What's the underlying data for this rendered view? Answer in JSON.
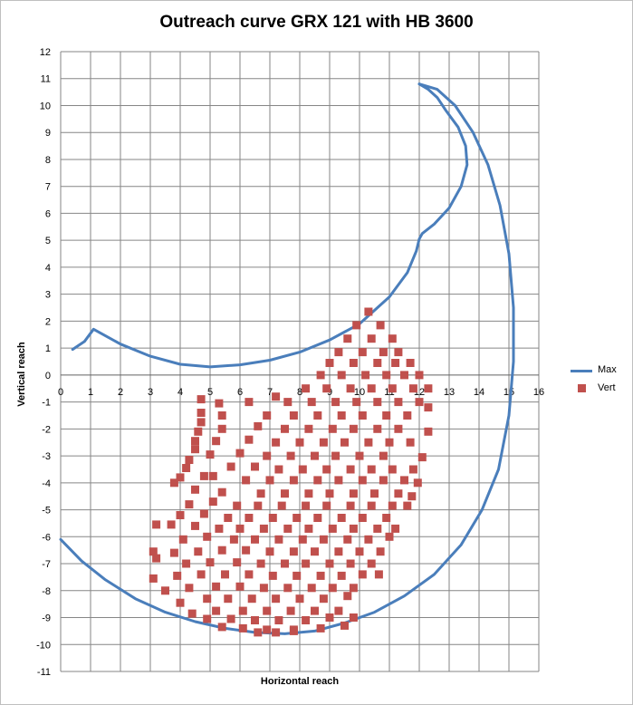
{
  "chart_data": {
    "type": "scatter",
    "title": "Outreach curve GRX 121 with HB 3600",
    "xlabel": "Horizontal reach",
    "ylabel": "Vertical reach",
    "xlim": [
      0,
      16
    ],
    "ylim": [
      -11,
      12
    ],
    "x_ticks": [
      0,
      1,
      2,
      3,
      4,
      5,
      6,
      7,
      8,
      9,
      10,
      11,
      12,
      13,
      14,
      15,
      16
    ],
    "y_ticks": [
      12,
      11,
      10,
      9,
      8,
      7,
      6,
      5,
      4,
      3,
      2,
      1,
      0,
      -1,
      -2,
      -3,
      -4,
      -5,
      -6,
      -7,
      -8,
      -9,
      -10,
      -11
    ],
    "grid": true,
    "legend_position": "right",
    "series": [
      {
        "name": "Max",
        "style": "line",
        "color": "#4a7ebb",
        "segments": [
          [
            [
              0.4,
              0.95
            ],
            [
              0.8,
              1.25
            ],
            [
              1.1,
              1.7
            ],
            [
              2.0,
              1.15
            ],
            [
              3.0,
              0.7
            ],
            [
              4.0,
              0.4
            ],
            [
              5.0,
              0.3
            ],
            [
              6.0,
              0.38
            ],
            [
              7.0,
              0.55
            ],
            [
              8.0,
              0.85
            ],
            [
              9.0,
              1.3
            ],
            [
              10.0,
              1.9
            ],
            [
              11.0,
              2.9
            ],
            [
              11.6,
              3.8
            ],
            [
              11.9,
              4.6
            ],
            [
              12.0,
              5.05
            ],
            [
              12.1,
              5.25
            ],
            [
              12.5,
              5.6
            ],
            [
              13.0,
              6.2
            ],
            [
              13.4,
              7.0
            ],
            [
              13.6,
              7.8
            ],
            [
              13.55,
              8.5
            ],
            [
              13.3,
              9.2
            ],
            [
              12.9,
              9.8
            ],
            [
              12.6,
              10.3
            ],
            [
              12.3,
              10.6
            ],
            [
              12.0,
              10.8
            ]
          ],
          [
            [
              12.0,
              10.8
            ],
            [
              12.6,
              10.6
            ],
            [
              13.2,
              10.0
            ],
            [
              13.8,
              9.0
            ],
            [
              14.3,
              7.8
            ],
            [
              14.7,
              6.3
            ],
            [
              15.0,
              4.5
            ],
            [
              15.15,
              2.5
            ],
            [
              15.15,
              0.5
            ],
            [
              15.0,
              -1.5
            ],
            [
              14.65,
              -3.5
            ],
            [
              14.1,
              -5.0
            ],
            [
              13.4,
              -6.3
            ],
            [
              12.5,
              -7.4
            ],
            [
              11.5,
              -8.2
            ],
            [
              10.5,
              -8.8
            ],
            [
              9.5,
              -9.2
            ],
            [
              8.5,
              -9.5
            ],
            [
              7.5,
              -9.6
            ],
            [
              6.5,
              -9.55
            ],
            [
              5.5,
              -9.4
            ],
            [
              4.5,
              -9.15
            ],
            [
              3.5,
              -8.8
            ],
            [
              2.5,
              -8.3
            ],
            [
              1.5,
              -7.6
            ],
            [
              0.7,
              -6.9
            ],
            [
              0.0,
              -6.1
            ]
          ]
        ]
      },
      {
        "name": "Vert",
        "style": "marker",
        "color": "#c0504d",
        "points": [
          [
            10.3,
            2.35
          ],
          [
            9.9,
            1.85
          ],
          [
            10.7,
            1.85
          ],
          [
            9.6,
            1.35
          ],
          [
            10.4,
            1.35
          ],
          [
            11.1,
            1.35
          ],
          [
            9.3,
            0.85
          ],
          [
            10.1,
            0.85
          ],
          [
            10.8,
            0.85
          ],
          [
            11.3,
            0.85
          ],
          [
            9.0,
            0.45
          ],
          [
            9.8,
            0.45
          ],
          [
            10.6,
            0.45
          ],
          [
            11.2,
            0.45
          ],
          [
            11.7,
            0.45
          ],
          [
            8.7,
            0.0
          ],
          [
            9.4,
            0.0
          ],
          [
            10.2,
            0.0
          ],
          [
            10.9,
            0.0
          ],
          [
            11.5,
            0.0
          ],
          [
            12.0,
            0.0
          ],
          [
            8.2,
            -0.5
          ],
          [
            8.9,
            -0.5
          ],
          [
            9.7,
            -0.5
          ],
          [
            10.4,
            -0.5
          ],
          [
            11.1,
            -0.5
          ],
          [
            11.8,
            -0.5
          ],
          [
            12.3,
            -0.5
          ],
          [
            7.2,
            -0.8
          ],
          [
            7.6,
            -1.0
          ],
          [
            8.4,
            -1.0
          ],
          [
            9.2,
            -1.0
          ],
          [
            9.9,
            -1.0
          ],
          [
            10.6,
            -1.0
          ],
          [
            11.3,
            -1.0
          ],
          [
            12.0,
            -1.0
          ],
          [
            12.3,
            -1.2
          ],
          [
            6.3,
            -1.0
          ],
          [
            5.3,
            -1.05
          ],
          [
            6.9,
            -1.5
          ],
          [
            7.8,
            -1.5
          ],
          [
            8.6,
            -1.5
          ],
          [
            9.4,
            -1.5
          ],
          [
            10.1,
            -1.5
          ],
          [
            10.9,
            -1.5
          ],
          [
            11.6,
            -1.5
          ],
          [
            5.4,
            -1.5
          ],
          [
            6.6,
            -1.9
          ],
          [
            7.5,
            -2.0
          ],
          [
            8.3,
            -2.0
          ],
          [
            9.1,
            -2.0
          ],
          [
            9.8,
            -2.0
          ],
          [
            10.6,
            -2.0
          ],
          [
            11.3,
            -2.0
          ],
          [
            12.3,
            -2.1
          ],
          [
            5.4,
            -2.0
          ],
          [
            6.3,
            -2.4
          ],
          [
            7.2,
            -2.5
          ],
          [
            8.0,
            -2.5
          ],
          [
            8.8,
            -2.5
          ],
          [
            9.5,
            -2.5
          ],
          [
            10.3,
            -2.5
          ],
          [
            11.0,
            -2.5
          ],
          [
            11.7,
            -2.5
          ],
          [
            5.2,
            -2.45
          ],
          [
            5.0,
            -2.95
          ],
          [
            6.0,
            -2.9
          ],
          [
            6.9,
            -3.0
          ],
          [
            7.7,
            -3.0
          ],
          [
            8.5,
            -3.0
          ],
          [
            9.2,
            -3.0
          ],
          [
            10.0,
            -3.0
          ],
          [
            10.8,
            -3.0
          ],
          [
            12.1,
            -3.05
          ],
          [
            5.7,
            -3.4
          ],
          [
            6.5,
            -3.4
          ],
          [
            7.3,
            -3.5
          ],
          [
            8.1,
            -3.5
          ],
          [
            8.9,
            -3.5
          ],
          [
            9.7,
            -3.5
          ],
          [
            10.4,
            -3.5
          ],
          [
            11.1,
            -3.5
          ],
          [
            11.8,
            -3.5
          ],
          [
            5.1,
            -3.75
          ],
          [
            4.8,
            -3.75
          ],
          [
            6.2,
            -3.9
          ],
          [
            7.0,
            -3.9
          ],
          [
            7.8,
            -3.9
          ],
          [
            8.6,
            -3.9
          ],
          [
            9.3,
            -3.9
          ],
          [
            10.1,
            -3.9
          ],
          [
            10.8,
            -3.9
          ],
          [
            11.5,
            -3.9
          ],
          [
            11.95,
            -4.0
          ],
          [
            4.5,
            -4.25
          ],
          [
            5.4,
            -4.35
          ],
          [
            6.7,
            -4.4
          ],
          [
            7.5,
            -4.4
          ],
          [
            8.3,
            -4.4
          ],
          [
            9.0,
            -4.4
          ],
          [
            9.8,
            -4.4
          ],
          [
            10.5,
            -4.4
          ],
          [
            11.3,
            -4.4
          ],
          [
            11.75,
            -4.5
          ],
          [
            4.3,
            -4.8
          ],
          [
            5.1,
            -4.7
          ],
          [
            5.9,
            -4.85
          ],
          [
            6.6,
            -4.85
          ],
          [
            7.4,
            -4.85
          ],
          [
            8.2,
            -4.85
          ],
          [
            8.9,
            -4.85
          ],
          [
            9.7,
            -4.85
          ],
          [
            10.4,
            -4.85
          ],
          [
            11.1,
            -4.85
          ],
          [
            11.6,
            -4.85
          ],
          [
            4.0,
            -5.2
          ],
          [
            4.8,
            -5.15
          ],
          [
            5.6,
            -5.3
          ],
          [
            6.3,
            -5.3
          ],
          [
            7.1,
            -5.3
          ],
          [
            7.9,
            -5.3
          ],
          [
            8.6,
            -5.3
          ],
          [
            9.4,
            -5.3
          ],
          [
            10.1,
            -5.3
          ],
          [
            10.9,
            -5.3
          ],
          [
            3.2,
            -5.55
          ],
          [
            3.7,
            -5.55
          ],
          [
            4.5,
            -5.6
          ],
          [
            5.3,
            -5.7
          ],
          [
            6.0,
            -5.7
          ],
          [
            6.8,
            -5.7
          ],
          [
            7.6,
            -5.7
          ],
          [
            8.3,
            -5.7
          ],
          [
            9.1,
            -5.7
          ],
          [
            9.8,
            -5.7
          ],
          [
            10.6,
            -5.7
          ],
          [
            11.2,
            -5.7
          ],
          [
            4.1,
            -6.1
          ],
          [
            4.9,
            -6.0
          ],
          [
            5.8,
            -6.1
          ],
          [
            6.5,
            -6.1
          ],
          [
            7.3,
            -6.1
          ],
          [
            8.1,
            -6.1
          ],
          [
            8.8,
            -6.1
          ],
          [
            9.6,
            -6.1
          ],
          [
            10.3,
            -6.1
          ],
          [
            11.0,
            -6.0
          ],
          [
            3.1,
            -6.55
          ],
          [
            3.8,
            -6.6
          ],
          [
            4.6,
            -6.55
          ],
          [
            5.4,
            -6.5
          ],
          [
            6.2,
            -6.5
          ],
          [
            7.0,
            -6.55
          ],
          [
            7.8,
            -6.55
          ],
          [
            8.5,
            -6.55
          ],
          [
            9.3,
            -6.55
          ],
          [
            10.0,
            -6.55
          ],
          [
            10.7,
            -6.55
          ],
          [
            3.2,
            -6.8
          ],
          [
            4.2,
            -7.0
          ],
          [
            5.0,
            -6.95
          ],
          [
            5.9,
            -6.95
          ],
          [
            6.7,
            -7.0
          ],
          [
            7.5,
            -7.0
          ],
          [
            8.2,
            -7.0
          ],
          [
            9.0,
            -7.0
          ],
          [
            9.7,
            -7.0
          ],
          [
            10.4,
            -7.0
          ],
          [
            3.1,
            -7.55
          ],
          [
            3.9,
            -7.45
          ],
          [
            4.7,
            -7.4
          ],
          [
            5.5,
            -7.4
          ],
          [
            6.3,
            -7.4
          ],
          [
            7.1,
            -7.45
          ],
          [
            7.9,
            -7.45
          ],
          [
            8.7,
            -7.45
          ],
          [
            9.4,
            -7.45
          ],
          [
            10.1,
            -7.4
          ],
          [
            10.65,
            -7.4
          ],
          [
            3.5,
            -8.0
          ],
          [
            4.3,
            -7.9
          ],
          [
            5.2,
            -7.85
          ],
          [
            6.0,
            -7.85
          ],
          [
            6.8,
            -7.9
          ],
          [
            7.6,
            -7.9
          ],
          [
            8.4,
            -7.9
          ],
          [
            9.1,
            -7.9
          ],
          [
            9.8,
            -7.9
          ],
          [
            4.0,
            -8.45
          ],
          [
            4.9,
            -8.3
          ],
          [
            5.6,
            -8.3
          ],
          [
            6.4,
            -8.3
          ],
          [
            7.2,
            -8.3
          ],
          [
            8.0,
            -8.3
          ],
          [
            8.8,
            -8.3
          ],
          [
            9.6,
            -8.2
          ],
          [
            4.4,
            -8.85
          ],
          [
            5.2,
            -8.75
          ],
          [
            6.1,
            -8.75
          ],
          [
            6.9,
            -8.75
          ],
          [
            7.7,
            -8.75
          ],
          [
            8.5,
            -8.75
          ],
          [
            9.3,
            -8.75
          ],
          [
            4.9,
            -9.05
          ],
          [
            5.7,
            -9.05
          ],
          [
            6.5,
            -9.1
          ],
          [
            7.3,
            -9.1
          ],
          [
            8.2,
            -9.1
          ],
          [
            9.0,
            -9.0
          ],
          [
            9.8,
            -9.0
          ],
          [
            5.4,
            -9.35
          ],
          [
            6.1,
            -9.4
          ],
          [
            6.9,
            -9.45
          ],
          [
            7.8,
            -9.45
          ],
          [
            8.7,
            -9.4
          ],
          [
            9.5,
            -9.3
          ],
          [
            6.6,
            -9.55
          ],
          [
            7.2,
            -9.55
          ],
          [
            7.8,
            -9.5
          ],
          [
            4.7,
            -0.9
          ],
          [
            4.7,
            -1.4
          ],
          [
            4.7,
            -1.75
          ],
          [
            4.6,
            -2.1
          ],
          [
            4.5,
            -2.45
          ],
          [
            4.5,
            -2.75
          ],
          [
            4.3,
            -3.15
          ],
          [
            4.2,
            -3.45
          ],
          [
            4.0,
            -3.8
          ],
          [
            3.8,
            -4.0
          ]
        ]
      }
    ]
  }
}
